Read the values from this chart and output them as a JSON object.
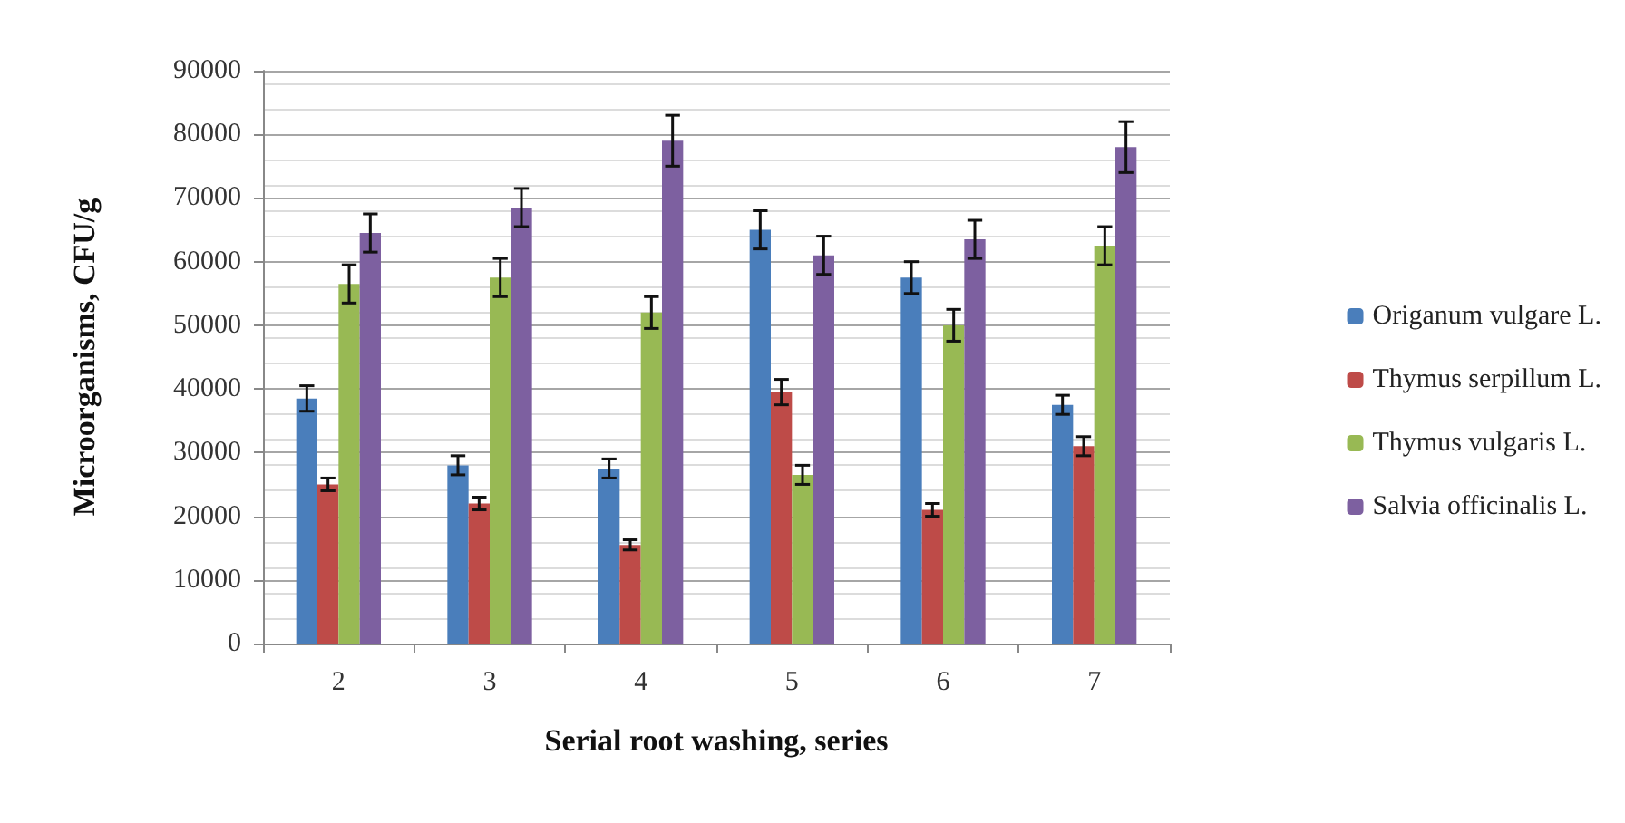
{
  "chart_data": {
    "type": "bar",
    "xlabel": "Serial root washing, series",
    "ylabel": "Microorganisms, CFU/g",
    "categories": [
      "2",
      "3",
      "4",
      "5",
      "6",
      "7"
    ],
    "series": [
      {
        "name": "Origanum vulgare L.",
        "color": "#4a7ebb",
        "values": [
          38500,
          28000,
          27500,
          65000,
          57500,
          37500
        ],
        "errors": [
          2000,
          1500,
          1500,
          3000,
          2500,
          1500
        ]
      },
      {
        "name": "Thymus serpillum L.",
        "color": "#be4b48",
        "values": [
          25000,
          22000,
          15500,
          39500,
          21000,
          31000
        ],
        "errors": [
          1000,
          1000,
          800,
          2000,
          1000,
          1500
        ]
      },
      {
        "name": "Thymus vulgaris L.",
        "color": "#98b954",
        "values": [
          56500,
          57500,
          52000,
          26500,
          50000,
          62500
        ],
        "errors": [
          3000,
          3000,
          2500,
          1500,
          2500,
          3000
        ]
      },
      {
        "name": "Salvia officinalis L.",
        "color": "#7d60a0",
        "values": [
          64500,
          68500,
          79000,
          61000,
          63500,
          78000
        ],
        "errors": [
          3000,
          3000,
          4000,
          3000,
          3000,
          4000
        ]
      }
    ],
    "ylim": [
      0,
      90000
    ],
    "yticks": [
      0,
      10000,
      20000,
      30000,
      40000,
      50000,
      60000,
      70000,
      80000,
      90000
    ],
    "grid": "y",
    "legend": "right"
  }
}
